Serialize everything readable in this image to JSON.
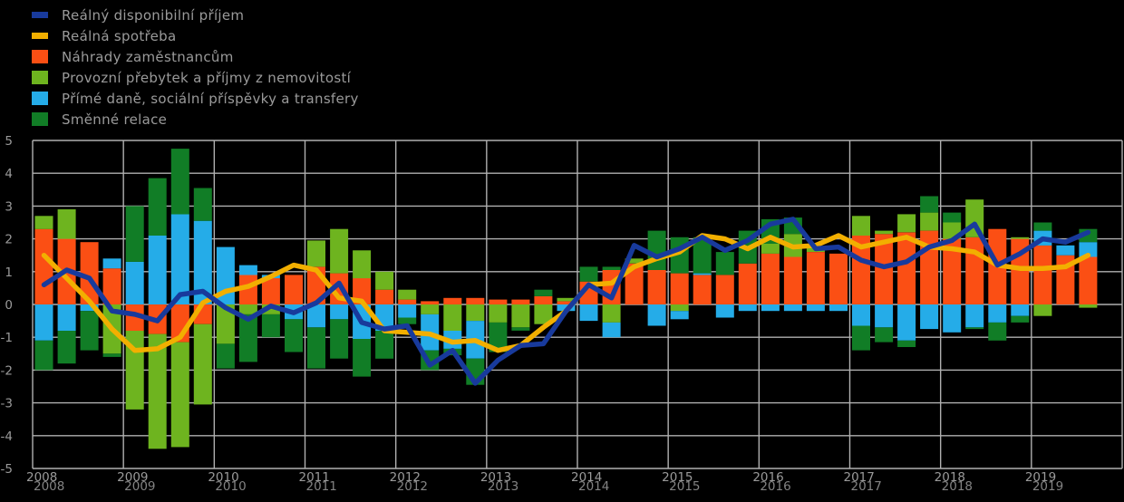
{
  "chart_data": {
    "type": "bar",
    "stacked": true,
    "title": "",
    "xlabel": "",
    "ylabel": "",
    "ylim": [
      -5,
      5
    ],
    "y_ticks": [
      5,
      4,
      3,
      2,
      1,
      0,
      -1,
      -2,
      -3,
      -4,
      -5
    ],
    "x_tick_labels": [
      "2008",
      "2009",
      "2010",
      "2011",
      "2012",
      "2013",
      "2014",
      "2015",
      "2016",
      "2017",
      "2018",
      "2019"
    ],
    "grid": true,
    "legend_position": "top-left",
    "background_color": "#000000",
    "gridline_color": "#b0b0b0",
    "text_color": "#9a9a9a",
    "x": [
      "2008Q1",
      "2008Q2",
      "2008Q3",
      "2008Q4",
      "2009Q1",
      "2009Q2",
      "2009Q3",
      "2009Q4",
      "2010Q1",
      "2010Q2",
      "2010Q3",
      "2010Q4",
      "2011Q1",
      "2011Q2",
      "2011Q3",
      "2011Q4",
      "2012Q1",
      "2012Q2",
      "2012Q3",
      "2012Q4",
      "2013Q1",
      "2013Q2",
      "2013Q3",
      "2013Q4",
      "2014Q1",
      "2014Q2",
      "2014Q3",
      "2014Q4",
      "2015Q1",
      "2015Q2",
      "2015Q3",
      "2015Q4",
      "2016Q1",
      "2016Q2",
      "2016Q3",
      "2016Q4",
      "2017Q1",
      "2017Q2",
      "2017Q3",
      "2017Q4",
      "2018Q1",
      "2018Q2",
      "2018Q3",
      "2018Q4",
      "2019Q1",
      "2019Q2",
      "2019Q3"
    ],
    "series": [
      {
        "name": "Náhrady zaměstnancům",
        "type": "bar",
        "color": "#fb4f14",
        "values": [
          2.3,
          2.0,
          1.9,
          1.1,
          -0.8,
          -0.9,
          -1.15,
          -0.6,
          0.0,
          0.9,
          0.8,
          0.9,
          1.15,
          0.95,
          0.8,
          0.45,
          0.15,
          0.1,
          0.2,
          0.2,
          0.15,
          0.15,
          0.25,
          0.1,
          0.7,
          1.05,
          1.25,
          1.05,
          0.95,
          0.9,
          0.9,
          1.25,
          1.55,
          1.45,
          1.6,
          1.55,
          2.1,
          2.15,
          2.2,
          2.25,
          2.0,
          2.05,
          2.3,
          2.0,
          1.8,
          1.5,
          1.45
        ]
      },
      {
        "name": "Provozní přebytek a příjmy z nemovitostí",
        "type": "bar",
        "color": "#6eb41f",
        "values": [
          0.4,
          0.9,
          0.0,
          -1.5,
          -2.4,
          -3.5,
          -3.2,
          -2.45,
          -1.2,
          -0.3,
          -0.3,
          0.0,
          0.8,
          1.35,
          0.85,
          0.55,
          0.3,
          -0.3,
          -0.8,
          -0.5,
          -0.55,
          -0.7,
          -0.6,
          0.1,
          0.0,
          -0.55,
          0.15,
          0.0,
          -0.2,
          0.0,
          0.0,
          0.0,
          0.3,
          0.7,
          0.15,
          0.0,
          0.6,
          0.1,
          0.55,
          0.55,
          0.5,
          1.15,
          0.0,
          0.05,
          -0.35,
          0.0,
          -0.1
        ]
      },
      {
        "name": "Přímé daně, sociální příspěvky a transfery",
        "type": "bar",
        "color": "#25ace8",
        "values": [
          -1.1,
          -0.8,
          -0.2,
          0.3,
          1.3,
          2.1,
          2.75,
          2.55,
          1.75,
          0.3,
          0.1,
          -0.45,
          -0.7,
          -0.45,
          -1.05,
          -0.8,
          -0.4,
          -1.1,
          -0.55,
          -1.15,
          0.0,
          0.0,
          0.0,
          -0.2,
          -0.5,
          -0.45,
          0.0,
          -0.65,
          -0.25,
          0.05,
          -0.4,
          -0.2,
          -0.2,
          -0.2,
          -0.2,
          -0.2,
          -0.65,
          -0.7,
          -1.1,
          -0.75,
          -0.85,
          -0.7,
          -0.55,
          -0.35,
          0.45,
          0.3,
          0.45
        ]
      },
      {
        "name": "Směnné relace",
        "type": "bar",
        "color": "#117d26",
        "values": [
          -0.9,
          -1.0,
          -1.2,
          -0.1,
          1.7,
          1.75,
          2.0,
          1.0,
          -0.75,
          -1.45,
          -0.7,
          -1.0,
          -1.25,
          -1.2,
          -1.15,
          -0.85,
          -0.2,
          -0.6,
          -0.2,
          -0.8,
          -0.9,
          -0.1,
          0.2,
          0.0,
          0.45,
          0.1,
          0.0,
          1.2,
          1.1,
          1.1,
          0.7,
          1.0,
          0.75,
          0.5,
          0.0,
          0.0,
          -0.75,
          -0.45,
          -0.2,
          0.5,
          0.3,
          -0.05,
          -0.55,
          -0.2,
          0.25,
          0.0,
          0.4
        ]
      },
      {
        "name": "Reálný disponibilní příjem",
        "type": "line",
        "color": "#183a9c",
        "values": [
          0.6,
          1.05,
          0.8,
          -0.2,
          -0.3,
          -0.5,
          0.3,
          0.4,
          -0.1,
          -0.45,
          -0.05,
          -0.25,
          0.05,
          0.65,
          -0.55,
          -0.75,
          -0.65,
          -1.85,
          -1.4,
          -2.4,
          -1.7,
          -1.25,
          -1.2,
          -0.2,
          0.6,
          0.2,
          1.8,
          1.45,
          1.7,
          2.05,
          1.65,
          1.95,
          2.45,
          2.6,
          1.7,
          1.75,
          1.35,
          1.15,
          1.3,
          1.75,
          1.95,
          2.45,
          1.2,
          1.55,
          2.0,
          1.9,
          2.2
        ]
      },
      {
        "name": "Reálná spotřeba",
        "type": "line",
        "color": "#f2af00",
        "values": [
          1.5,
          0.8,
          0.1,
          -0.75,
          -1.4,
          -1.35,
          -1.0,
          0.05,
          0.4,
          0.55,
          0.85,
          1.2,
          1.05,
          0.2,
          0.1,
          -0.8,
          -0.85,
          -0.9,
          -1.15,
          -1.1,
          -1.4,
          -1.25,
          -0.7,
          -0.2,
          0.6,
          0.65,
          1.15,
          1.4,
          1.6,
          2.1,
          2.0,
          1.7,
          2.05,
          1.75,
          1.8,
          2.1,
          1.75,
          1.9,
          2.05,
          1.75,
          1.7,
          1.6,
          1.2,
          1.1,
          1.1,
          1.15,
          1.5
        ]
      }
    ]
  },
  "legend": {
    "order": [
      4,
      5,
      0,
      1,
      2,
      3
    ]
  }
}
